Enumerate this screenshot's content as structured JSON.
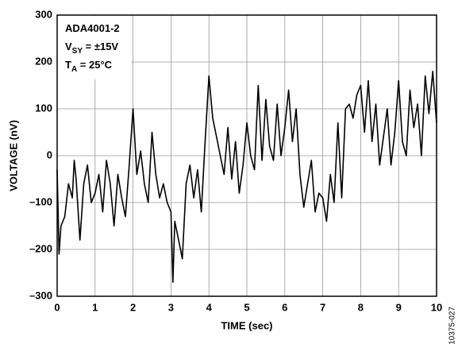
{
  "chart_data": {
    "type": "line",
    "xlabel": "TIME (sec)",
    "ylabel": "VOLTAGE (nV)",
    "annotations": [
      [
        "ADA4001-2"
      ],
      [
        "V",
        "SY",
        " = ±15V"
      ],
      [
        "T",
        "A",
        " = 25°C"
      ]
    ],
    "figure_id": "10375-027",
    "color": "#000000",
    "grid": true,
    "xlim": [
      0,
      10
    ],
    "xticks": [
      0,
      1,
      2,
      3,
      4,
      5,
      6,
      7,
      8,
      9,
      10
    ],
    "ylim": [
      -300,
      300
    ],
    "yticks": [
      {
        "value": -300,
        "label": "–300"
      },
      {
        "value": -200,
        "label": "–200"
      },
      {
        "value": -100,
        "label": "–100"
      },
      0,
      100,
      200,
      300
    ],
    "x": [
      0,
      0.05,
      0.1,
      0.2,
      0.3,
      0.4,
      0.45,
      0.5,
      0.6,
      0.7,
      0.8,
      0.9,
      1.0,
      1.1,
      1.2,
      1.3,
      1.4,
      1.5,
      1.6,
      1.7,
      1.8,
      1.9,
      2.0,
      2.1,
      2.2,
      2.3,
      2.4,
      2.5,
      2.6,
      2.7,
      2.8,
      2.9,
      3.0,
      3.05,
      3.1,
      3.2,
      3.3,
      3.4,
      3.5,
      3.6,
      3.7,
      3.8,
      3.9,
      4.0,
      4.1,
      4.2,
      4.3,
      4.4,
      4.5,
      4.6,
      4.7,
      4.8,
      4.9,
      5.0,
      5.1,
      5.2,
      5.3,
      5.4,
      5.5,
      5.6,
      5.7,
      5.8,
      5.9,
      6.0,
      6.1,
      6.2,
      6.3,
      6.4,
      6.5,
      6.6,
      6.7,
      6.8,
      6.9,
      7.0,
      7.1,
      7.2,
      7.3,
      7.4,
      7.5,
      7.6,
      7.7,
      7.8,
      7.9,
      8.0,
      8.1,
      8.2,
      8.3,
      8.4,
      8.5,
      8.6,
      8.7,
      8.8,
      8.9,
      9.0,
      9.1,
      9.2,
      9.3,
      9.4,
      9.5,
      9.6,
      9.7,
      9.8,
      9.9,
      10.0
    ],
    "values": [
      -30,
      -210,
      -150,
      -130,
      -60,
      -90,
      -10,
      -50,
      -180,
      -60,
      -20,
      -100,
      -80,
      -40,
      -120,
      -10,
      -60,
      -150,
      -40,
      -90,
      -130,
      -20,
      100,
      -40,
      10,
      -60,
      -100,
      50,
      -40,
      -90,
      -60,
      -100,
      -120,
      -270,
      -140,
      -180,
      -220,
      -60,
      -20,
      -90,
      -30,
      -120,
      30,
      170,
      80,
      40,
      0,
      -40,
      60,
      -50,
      30,
      -80,
      -20,
      70,
      0,
      -30,
      150,
      -10,
      120,
      20,
      -10,
      110,
      0,
      60,
      140,
      30,
      100,
      -40,
      -110,
      -60,
      -10,
      -120,
      -80,
      -90,
      -140,
      -40,
      -100,
      70,
      -90,
      100,
      110,
      80,
      130,
      150,
      50,
      160,
      30,
      110,
      -20,
      40,
      100,
      -20,
      50,
      160,
      30,
      0,
      140,
      60,
      110,
      0,
      170,
      90,
      180,
      70
    ]
  }
}
